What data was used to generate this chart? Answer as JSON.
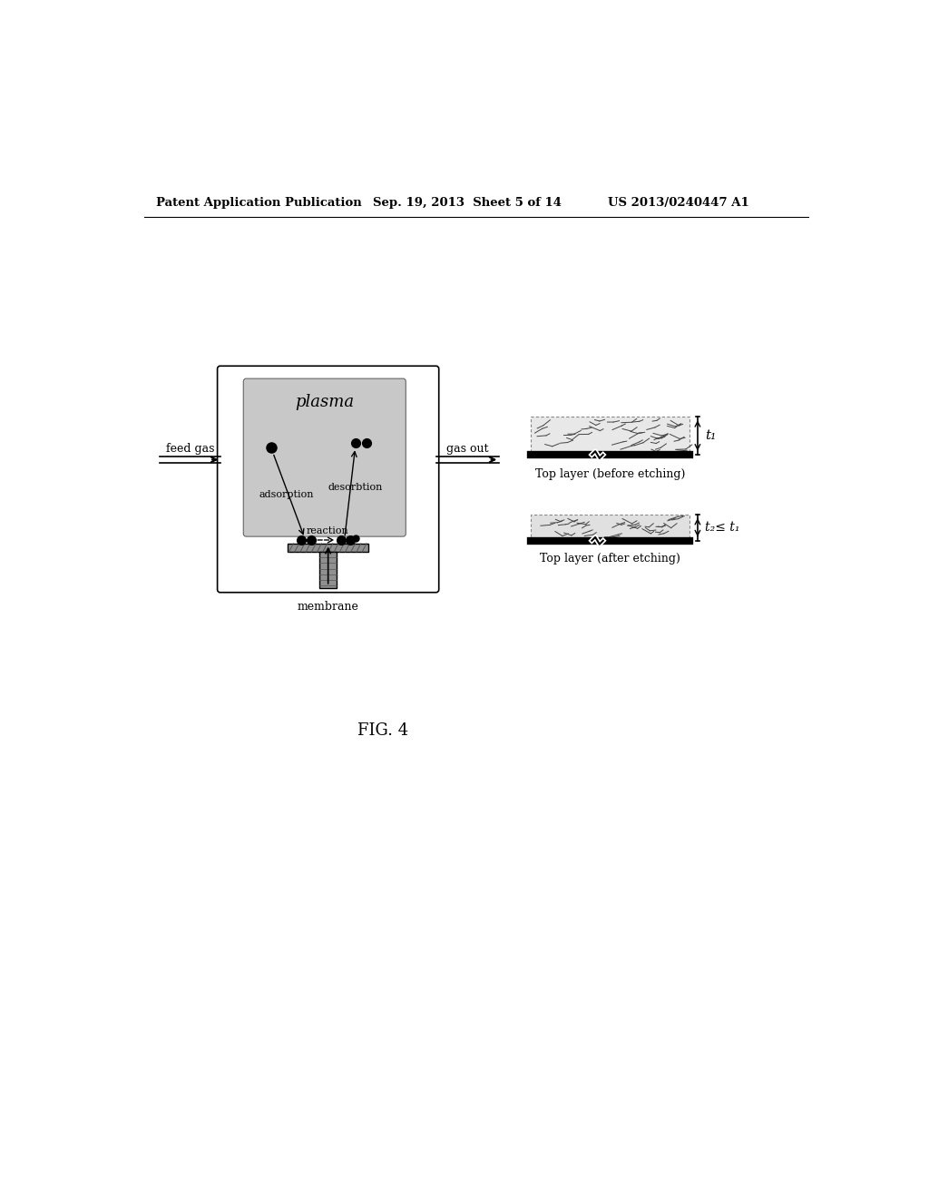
{
  "header_left": "Patent Application Publication",
  "header_mid": "Sep. 19, 2013  Sheet 5 of 14",
  "header_right": "US 2013/0240447 A1",
  "fig_label": "FIG. 4",
  "plasma_label": "plasma",
  "feed_gas_label": "feed gas",
  "gas_out_label": "gas out",
  "adsorption_label": "adsorption",
  "desorption_label": "desorbtion",
  "reaction_label": "reaction",
  "membrane_label": "membrane",
  "top_before_label": "Top layer (before etching)",
  "top_after_label": "Top layer (after etching)",
  "t1_label": "t₁",
  "t2_label": "t₂≤ t₁",
  "bg_color": "#ffffff",
  "plasma_box_color": "#c8c8c8",
  "text_color": "#000000"
}
